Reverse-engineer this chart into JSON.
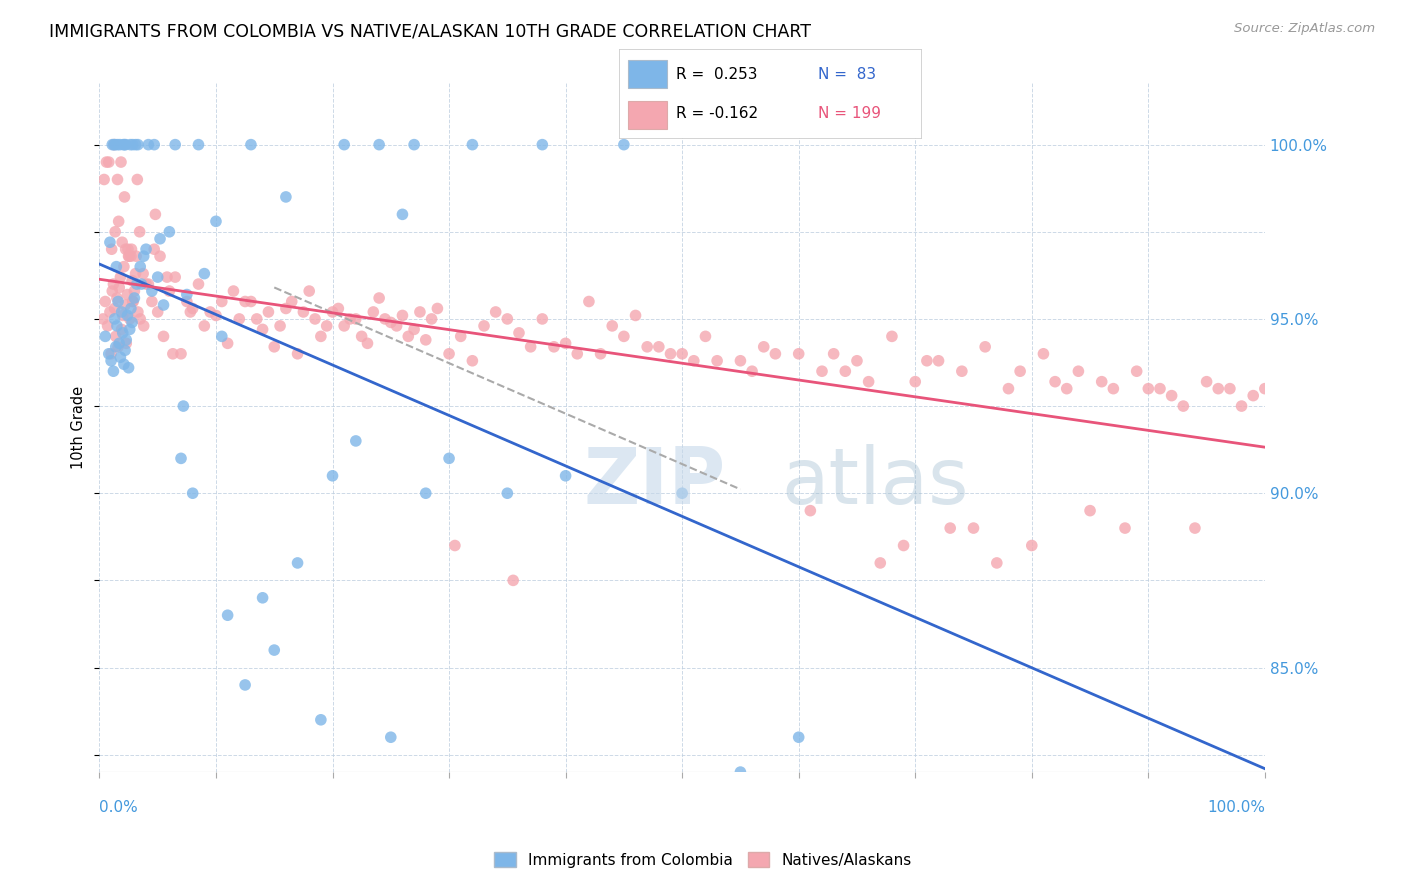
{
  "title": "IMMIGRANTS FROM COLOMBIA VS NATIVE/ALASKAN 10TH GRADE CORRELATION CHART",
  "source_text": "Source: ZipAtlas.com",
  "ylabel": "10th Grade",
  "right_yticks": [
    85.0,
    90.0,
    95.0,
    100.0
  ],
  "right_ytick_labels": [
    "85.0%",
    "90.0%",
    "95.0%",
    "100.0%"
  ],
  "xmin": 0.0,
  "xmax": 100.0,
  "ymin": 82.0,
  "ymax": 101.8,
  "blue_color": "#7EB6E8",
  "pink_color": "#F4A7B0",
  "blue_line_color": "#3366CC",
  "pink_line_color": "#E8547A",
  "scatter_alpha": 0.8,
  "marker_size": 70,
  "blue_scatter_x": [
    0.5,
    0.8,
    1.0,
    1.1,
    1.2,
    1.3,
    1.35,
    1.4,
    1.45,
    1.5,
    1.55,
    1.6,
    1.7,
    1.75,
    1.8,
    1.9,
    2.0,
    2.05,
    2.1,
    2.15,
    2.2,
    2.25,
    2.3,
    2.4,
    2.5,
    2.6,
    2.65,
    2.7,
    2.8,
    2.85,
    3.0,
    3.1,
    3.2,
    3.3,
    3.5,
    3.6,
    3.8,
    4.0,
    4.2,
    4.5,
    4.7,
    5.0,
    5.2,
    5.5,
    6.0,
    6.5,
    7.0,
    7.2,
    7.5,
    8.0,
    8.5,
    9.0,
    10.0,
    10.5,
    11.0,
    12.5,
    13.0,
    14.0,
    15.0,
    16.0,
    17.0,
    19.0,
    20.0,
    21.0,
    22.0,
    24.0,
    25.0,
    26.0,
    27.0,
    28.0,
    30.0,
    32.0,
    35.0,
    38.0,
    40.0,
    45.0,
    50.0,
    55.0,
    60.0,
    0.9,
    1.25
  ],
  "blue_scatter_y": [
    94.5,
    94.0,
    93.8,
    100.0,
    93.5,
    95.0,
    100.0,
    94.2,
    96.5,
    94.8,
    100.0,
    95.5,
    94.3,
    100.0,
    93.9,
    95.2,
    94.6,
    100.0,
    93.7,
    100.0,
    94.1,
    100.0,
    94.4,
    95.1,
    93.6,
    94.7,
    100.0,
    95.3,
    94.9,
    100.0,
    95.6,
    100.0,
    96.0,
    100.0,
    96.5,
    96.0,
    96.8,
    97.0,
    100.0,
    95.8,
    100.0,
    96.2,
    97.3,
    95.4,
    97.5,
    100.0,
    91.0,
    92.5,
    95.7,
    90.0,
    100.0,
    96.3,
    97.8,
    94.5,
    86.5,
    84.5,
    100.0,
    87.0,
    85.5,
    98.5,
    88.0,
    83.5,
    90.5,
    100.0,
    91.5,
    100.0,
    83.0,
    98.0,
    100.0,
    90.0,
    91.0,
    100.0,
    90.0,
    100.0,
    90.5,
    100.0,
    90.0,
    82.0,
    83.0,
    97.2,
    100.0
  ],
  "pink_scatter_x": [
    0.3,
    0.4,
    0.5,
    0.6,
    0.7,
    0.8,
    0.9,
    1.0,
    1.05,
    1.1,
    1.2,
    1.25,
    1.3,
    1.35,
    1.4,
    1.5,
    1.55,
    1.6,
    1.65,
    1.7,
    1.8,
    1.85,
    1.9,
    1.95,
    2.0,
    2.1,
    2.15,
    2.2,
    2.25,
    2.3,
    2.4,
    2.45,
    2.5,
    2.55,
    2.6,
    2.7,
    2.75,
    2.8,
    2.85,
    2.9,
    3.0,
    3.1,
    3.15,
    3.25,
    3.3,
    3.45,
    3.5,
    3.75,
    3.8,
    4.0,
    4.2,
    4.5,
    4.7,
    4.8,
    5.0,
    5.2,
    5.5,
    5.8,
    6.0,
    6.3,
    6.5,
    7.0,
    7.5,
    7.8,
    8.0,
    8.5,
    9.0,
    9.5,
    10.0,
    10.5,
    11.0,
    11.5,
    12.0,
    12.5,
    13.0,
    13.5,
    14.0,
    14.5,
    15.0,
    15.5,
    16.0,
    16.5,
    17.0,
    17.5,
    18.0,
    18.5,
    19.0,
    19.5,
    20.0,
    20.5,
    21.0,
    21.5,
    22.0,
    22.5,
    23.0,
    23.5,
    24.0,
    24.5,
    25.0,
    25.5,
    26.0,
    26.5,
    27.0,
    27.5,
    28.0,
    28.5,
    29.0,
    30.0,
    30.5,
    31.0,
    32.0,
    33.0,
    34.0,
    35.0,
    35.5,
    36.0,
    37.0,
    38.0,
    39.0,
    40.0,
    41.0,
    42.0,
    43.0,
    44.0,
    45.0,
    46.0,
    47.0,
    48.0,
    49.0,
    50.0,
    51.0,
    52.0,
    53.0,
    55.0,
    56.0,
    57.0,
    58.0,
    60.0,
    61.0,
    62.0,
    63.0,
    64.0,
    65.0,
    66.0,
    67.0,
    68.0,
    69.0,
    70.0,
    71.0,
    72.0,
    73.0,
    74.0,
    75.0,
    76.0,
    77.0,
    78.0,
    79.0,
    80.0,
    81.0,
    82.0,
    83.0,
    84.0,
    85.0,
    86.0,
    87.0,
    88.0,
    89.0,
    90.0,
    91.0,
    92.0,
    93.0,
    94.0,
    95.0,
    96.0,
    97.0,
    98.0,
    99.0,
    100.0
  ],
  "pink_scatter_y": [
    95.0,
    99.0,
    95.5,
    99.5,
    94.8,
    99.5,
    95.2,
    94.0,
    97.0,
    95.8,
    96.0,
    100.0,
    95.3,
    97.5,
    94.5,
    95.6,
    99.0,
    94.2,
    97.8,
    95.9,
    96.2,
    99.5,
    94.7,
    97.2,
    95.1,
    96.5,
    98.5,
    95.4,
    97.0,
    94.3,
    95.7,
    97.0,
    96.8,
    96.8,
    95.0,
    96.8,
    97.0,
    96.1,
    95.5,
    95.5,
    95.8,
    96.3,
    96.8,
    99.0,
    95.2,
    97.5,
    95.0,
    96.3,
    94.8,
    96.0,
    96.0,
    95.5,
    97.0,
    98.0,
    95.2,
    96.8,
    94.5,
    96.2,
    95.8,
    94.0,
    96.2,
    94.0,
    95.5,
    95.2,
    95.3,
    96.0,
    94.8,
    95.2,
    95.1,
    95.5,
    94.3,
    95.8,
    95.0,
    95.5,
    95.5,
    95.0,
    94.7,
    95.2,
    94.2,
    94.8,
    95.3,
    95.5,
    94.0,
    95.2,
    95.8,
    95.0,
    94.5,
    94.8,
    95.2,
    95.3,
    94.8,
    95.0,
    95.0,
    94.5,
    94.3,
    95.2,
    95.6,
    95.0,
    94.9,
    94.8,
    95.1,
    94.5,
    94.7,
    95.2,
    94.4,
    95.0,
    95.3,
    94.0,
    88.5,
    94.5,
    93.8,
    94.8,
    95.2,
    95.0,
    87.5,
    94.6,
    94.2,
    95.0,
    94.2,
    94.3,
    94.0,
    95.5,
    94.0,
    94.8,
    94.5,
    95.1,
    94.2,
    94.2,
    94.0,
    94.0,
    93.8,
    94.5,
    93.8,
    93.8,
    93.5,
    94.2,
    94.0,
    94.0,
    89.5,
    93.5,
    94.0,
    93.5,
    93.8,
    93.2,
    88.0,
    94.5,
    88.5,
    93.2,
    93.8,
    93.8,
    89.0,
    93.5,
    89.0,
    94.2,
    88.0,
    93.0,
    93.5,
    88.5,
    94.0,
    93.2,
    93.0,
    93.5,
    89.5,
    93.2,
    93.0,
    89.0,
    93.5,
    93.0,
    93.0,
    92.8,
    92.5,
    89.0,
    93.2,
    93.0,
    93.0,
    92.5,
    92.8,
    93.0
  ]
}
